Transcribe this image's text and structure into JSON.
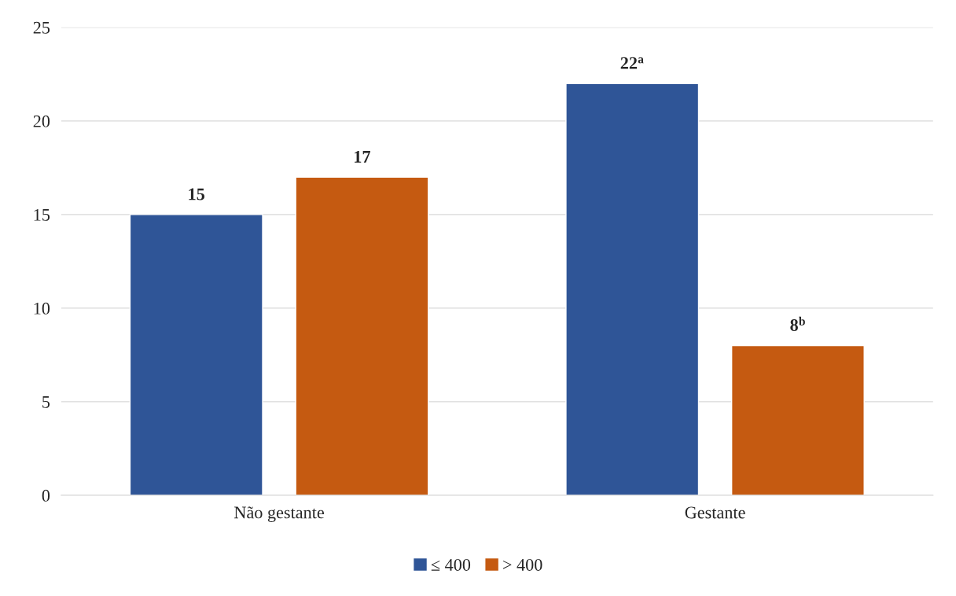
{
  "chart_data": {
    "type": "bar",
    "categories": [
      "Não gestante",
      "Gestante"
    ],
    "series": [
      {
        "name": "≤ 400",
        "color": "#2f5597",
        "values": [
          15,
          22
        ],
        "value_labels": [
          "15",
          "22$^{a}$"
        ]
      },
      {
        "name": "> 400",
        "color": "#c55a11",
        "values": [
          17,
          8
        ],
        "value_labels": [
          "17",
          "8$^{b}$"
        ]
      }
    ],
    "ylim": [
      0,
      25
    ],
    "yticks": [
      0,
      5,
      10,
      15,
      20,
      25
    ],
    "grid": "y",
    "legend": "bottom"
  }
}
